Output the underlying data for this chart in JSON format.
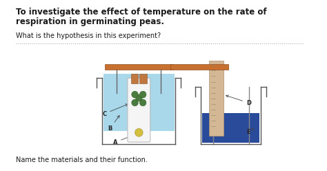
{
  "title_line1": "To investigate the effect of temperature on the rate of",
  "title_line2": "respiration in germinating peas.",
  "question": "What is the hypothesis in this experiment?",
  "bottom_text": "Name the materials and their function.",
  "bg_color": "#ffffff",
  "text_color": "#1a1a1a",
  "title_fontsize": 8.5,
  "body_fontsize": 7.0,
  "label_fontsize": 6.0,
  "water_color_left": "#a8d8ea",
  "water_color_right": "#2a4a9a",
  "tube_white": "#f5f5f5",
  "ruler_color": "#d4b896",
  "stopper_color": "#c07840",
  "frame_color": "#c87030",
  "pea_color": "#4a7c3f",
  "ball_color": "#d4c040",
  "line_color": "#555555",
  "label_color": "#222222",
  "dot_color": "#aaaaaa"
}
